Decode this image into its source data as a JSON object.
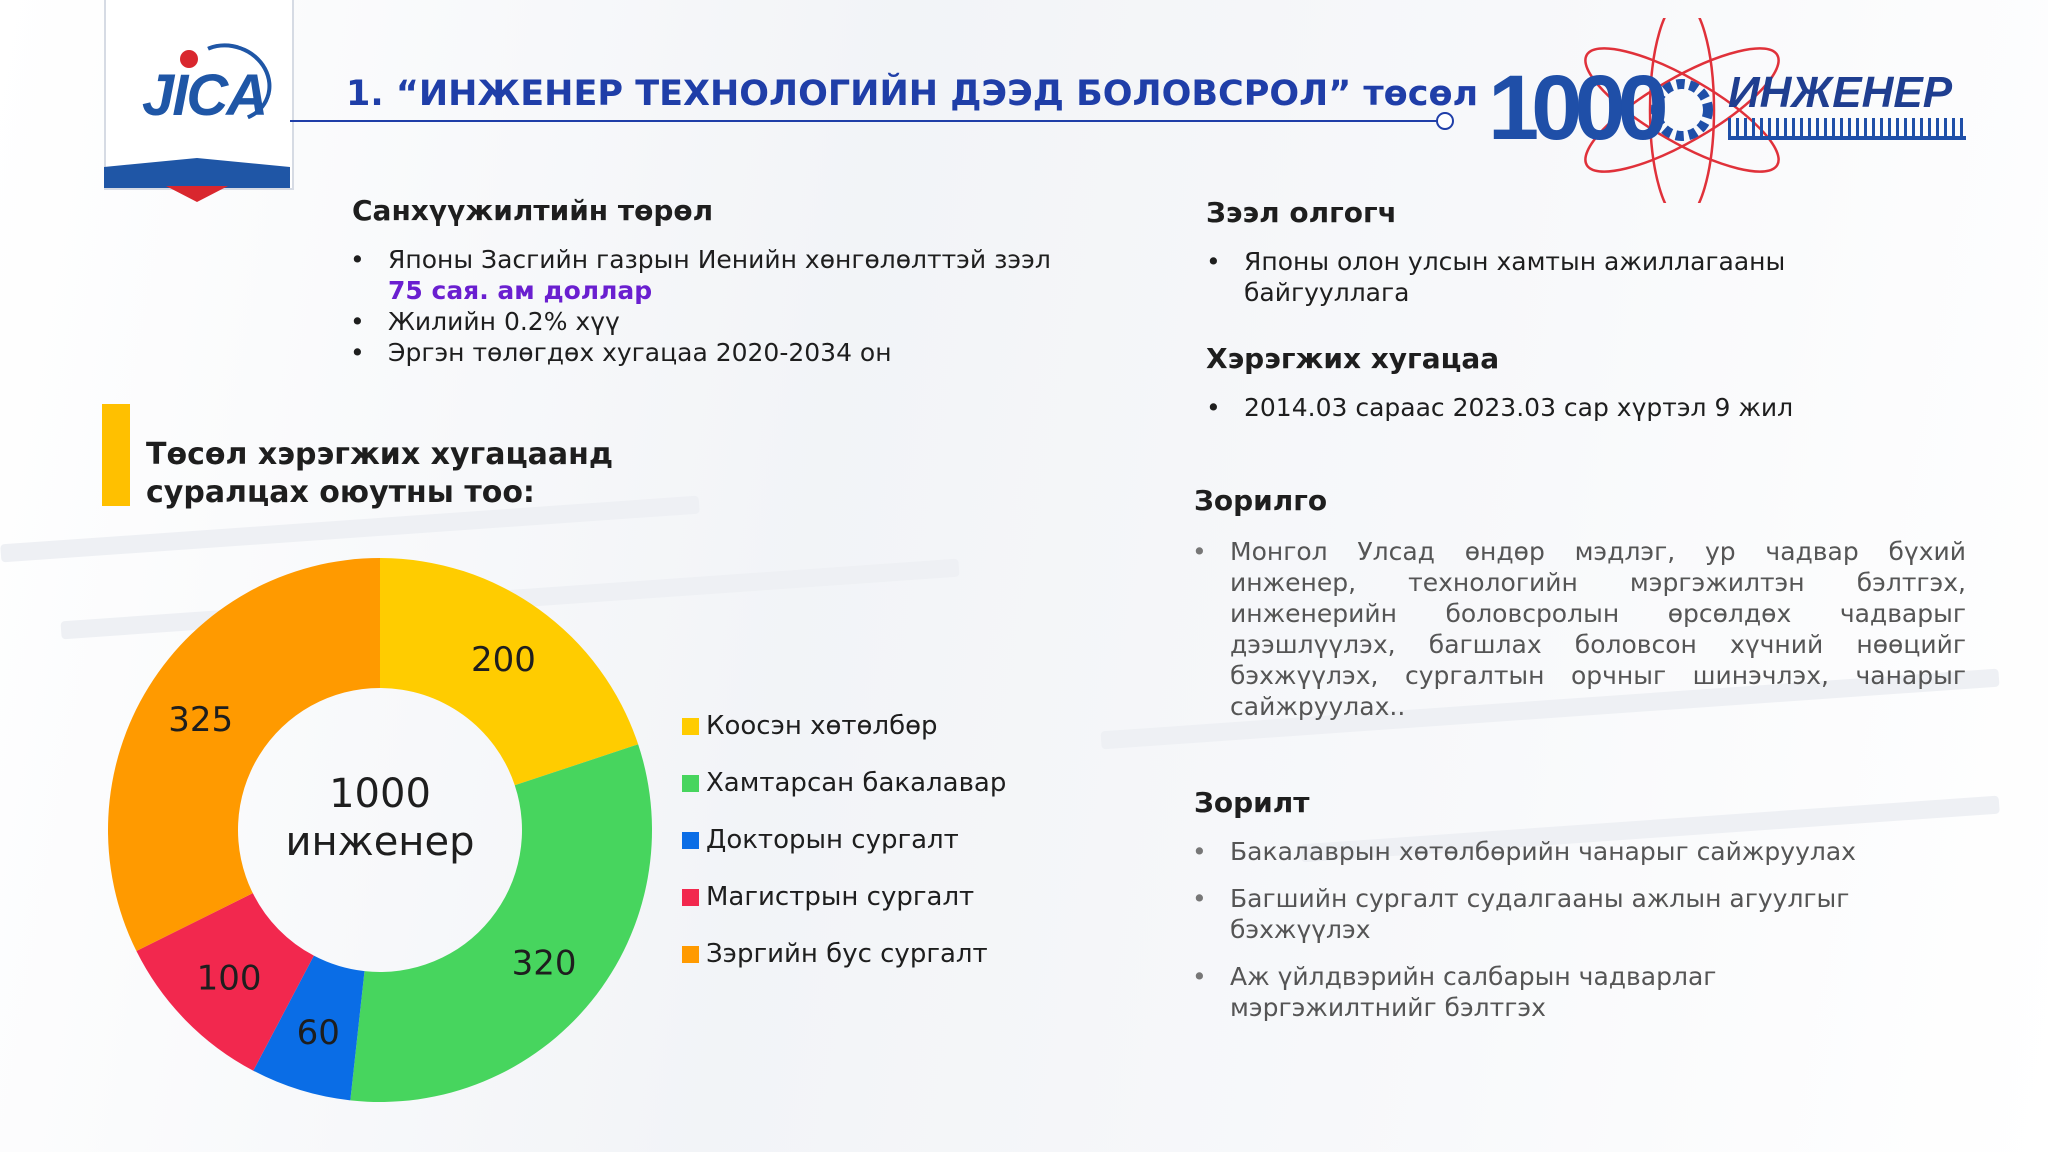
{
  "header": {
    "title": "1. “ИНЖЕНЕР ТЕХНОЛОГИЙН ДЭЭД БОЛОВСРОЛ” төсөл",
    "jica_logo_text": "JICA",
    "logo_number": "1000",
    "logo_word": "ИНЖЕНЕР"
  },
  "funding": {
    "heading": "Санхүүжилтийн төрөл",
    "items": [
      "Японы Засгийн газрын Иенийн хөнгөлөлттэй зээл",
      "Жилийн 0.2% хүү",
      "Эргэн төлөгдөх хугацаа 2020-2034 он"
    ],
    "amount": "75 сая. ам доллар"
  },
  "lender": {
    "heading": "Зээл олгогч",
    "items": [
      "Японы олон улсын хамтын ажиллагааны байгууллага"
    ]
  },
  "duration": {
    "heading": "Хэрэгжих хугацаа",
    "items": [
      "2014.03 сараас 2023.03 сар хүртэл 9 жил"
    ]
  },
  "goal": {
    "heading": "Зорилго",
    "items": [
      "Монгол Улсад өндөр мэдлэг, ур чадвар бүхий инженер, технологийн мэргэжилтэн бэлтгэх, инженерийн боловсролын өрсөлдөх чадварыг дээшлүүлэх, багшлах боловсон хүчний нөөцийг бэхжүүлэх, сургалтын орчныг шинэчлэх, чанарыг сайжруулах.."
    ]
  },
  "objective": {
    "heading": "Зорилт",
    "items": [
      "Бакалаврын хөтөлбөрийн чанарыг сайжруулах",
      "Багшийн сургалт судалгааны ажлын агуулгыг бэхжүүлэх",
      "Аж үйлдвэрийн салбарын чадварлаг мэргэжилтнийг бэлтгэх"
    ]
  },
  "chart_data": {
    "type": "pie",
    "title": "Төсөл хэрэгжих хугацаанд суралцах оюутны тоо:",
    "center_label": [
      "1000",
      "инженер"
    ],
    "categories": [
      "Коосэн хөтөлбөр",
      "Хамтарсан бакалавар",
      "Докторын сургалт",
      "Магистрын сургалт",
      "Зэргийн бус сургалт"
    ],
    "values": [
      200,
      320,
      60,
      100,
      325
    ],
    "colors": [
      "#ffcc00",
      "#47d55e",
      "#0a6de6",
      "#f2284e",
      "#ff9a00"
    ],
    "legend_position": "right"
  }
}
